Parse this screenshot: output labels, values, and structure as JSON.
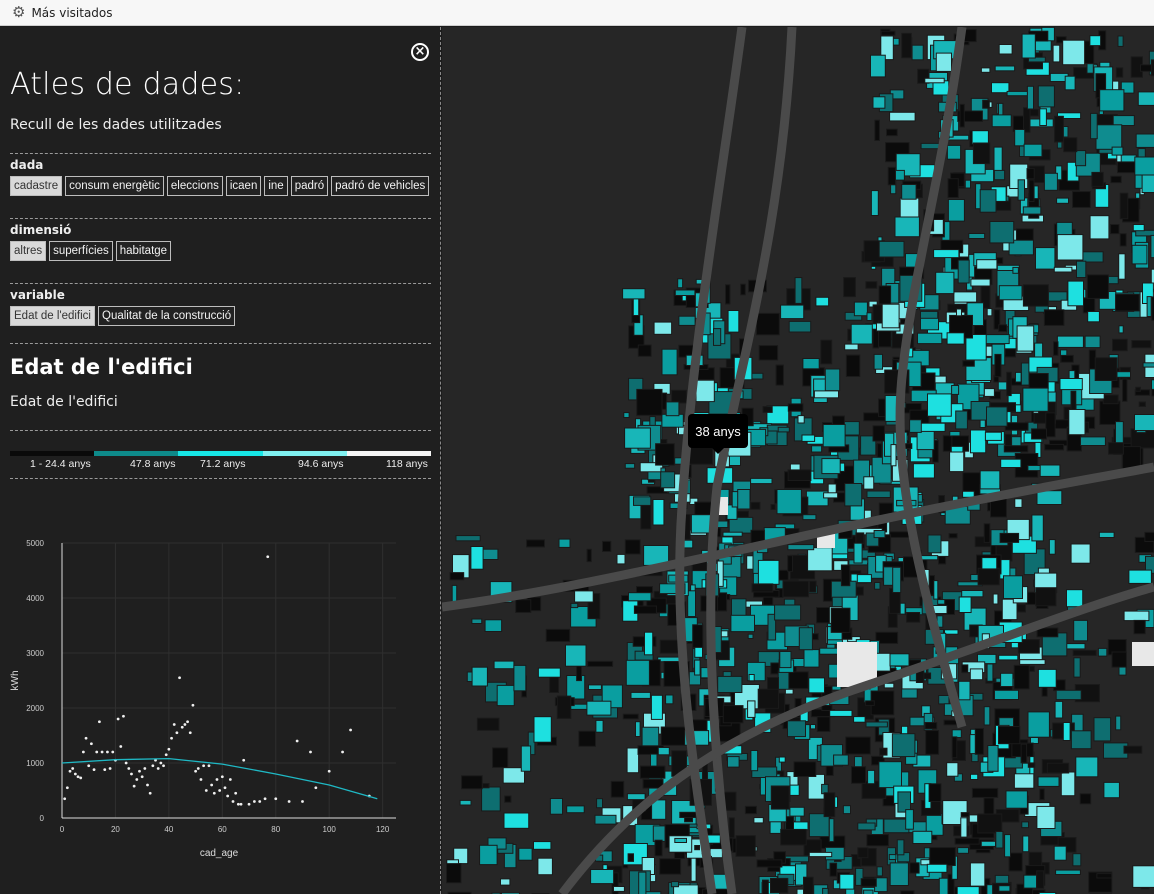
{
  "bookmarks": {
    "label": "Más visitados"
  },
  "panel": {
    "title": "Atles de dades:",
    "subtitle": "Recull de les dades utilitzades",
    "groups": [
      {
        "label": "dada",
        "items": [
          "cadastre",
          "consum energètic",
          "eleccions",
          "icaen",
          "ine",
          "padró",
          "padró de vehicles"
        ],
        "selected": "cadastre"
      },
      {
        "label": "dimensió",
        "items": [
          "altres",
          "superfícies",
          "habitatge"
        ],
        "selected": "altres"
      },
      {
        "label": "variable",
        "items": [
          "Edat de l'edifici",
          "Qualitat de la construcció"
        ],
        "selected": "Edat de l'edifici"
      }
    ],
    "variable_title": "Edat de l'edifici",
    "variable_desc": "Edat de l'edifici"
  },
  "legend": {
    "labels": [
      "1 - 24.4 anys",
      "47.8 anys",
      "71.2 anys",
      "94.6 anys",
      "118 anys"
    ],
    "colors": [
      "#0a0a0a",
      "#0e8a8a",
      "#17e6e6",
      "#7ff0f0",
      "#f5f5f5"
    ]
  },
  "chart_data": {
    "type": "scatter",
    "xlabel": "cad_age",
    "ylabel": "kWh",
    "xlim": [
      0,
      125
    ],
    "ylim": [
      0,
      5000
    ],
    "xticks": [
      0,
      20,
      40,
      60,
      80,
      100,
      120
    ],
    "yticks": [
      0,
      1000,
      2000,
      3000,
      4000,
      5000
    ],
    "points": [
      [
        1,
        350
      ],
      [
        2,
        550
      ],
      [
        3,
        850
      ],
      [
        4,
        900
      ],
      [
        5,
        800
      ],
      [
        6,
        750
      ],
      [
        7,
        730
      ],
      [
        8,
        1200
      ],
      [
        9,
        1450
      ],
      [
        10,
        950
      ],
      [
        11,
        1350
      ],
      [
        12,
        880
      ],
      [
        13,
        1200
      ],
      [
        14,
        1750
      ],
      [
        15,
        1200
      ],
      [
        16,
        880
      ],
      [
        17,
        1200
      ],
      [
        18,
        900
      ],
      [
        19,
        1200
      ],
      [
        20,
        1050
      ],
      [
        21,
        1800
      ],
      [
        22,
        1300
      ],
      [
        23,
        1850
      ],
      [
        24,
        1000
      ],
      [
        25,
        900
      ],
      [
        26,
        800
      ],
      [
        27,
        580
      ],
      [
        28,
        700
      ],
      [
        29,
        850
      ],
      [
        30,
        750
      ],
      [
        31,
        900
      ],
      [
        32,
        600
      ],
      [
        33,
        450
      ],
      [
        34,
        950
      ],
      [
        35,
        1050
      ],
      [
        36,
        900
      ],
      [
        37,
        1000
      ],
      [
        38,
        950
      ],
      [
        39,
        1150
      ],
      [
        40,
        1250
      ],
      [
        41,
        1450
      ],
      [
        42,
        1700
      ],
      [
        43,
        1550
      ],
      [
        44,
        2550
      ],
      [
        45,
        1650
      ],
      [
        46,
        1700
      ],
      [
        47,
        1750
      ],
      [
        48,
        1550
      ],
      [
        49,
        2050
      ],
      [
        50,
        850
      ],
      [
        51,
        900
      ],
      [
        52,
        700
      ],
      [
        53,
        950
      ],
      [
        54,
        500
      ],
      [
        55,
        950
      ],
      [
        56,
        600
      ],
      [
        57,
        450
      ],
      [
        58,
        700
      ],
      [
        59,
        500
      ],
      [
        60,
        750
      ],
      [
        61,
        550
      ],
      [
        62,
        400
      ],
      [
        63,
        700
      ],
      [
        64,
        300
      ],
      [
        65,
        450
      ],
      [
        66,
        250
      ],
      [
        67,
        250
      ],
      [
        68,
        1050
      ],
      [
        70,
        250
      ],
      [
        72,
        300
      ],
      [
        74,
        300
      ],
      [
        76,
        350
      ],
      [
        77,
        4750
      ],
      [
        80,
        350
      ],
      [
        85,
        300
      ],
      [
        88,
        1400
      ],
      [
        90,
        300
      ],
      [
        93,
        1200
      ],
      [
        95,
        550
      ],
      [
        100,
        850
      ],
      [
        105,
        1200
      ],
      [
        108,
        1600
      ],
      [
        115,
        400
      ]
    ],
    "trend": [
      [
        0,
        1000
      ],
      [
        20,
        1060
      ],
      [
        40,
        1080
      ],
      [
        60,
        980
      ],
      [
        80,
        800
      ],
      [
        100,
        600
      ],
      [
        118,
        350
      ]
    ]
  },
  "map": {
    "tooltip": "38 anys"
  }
}
